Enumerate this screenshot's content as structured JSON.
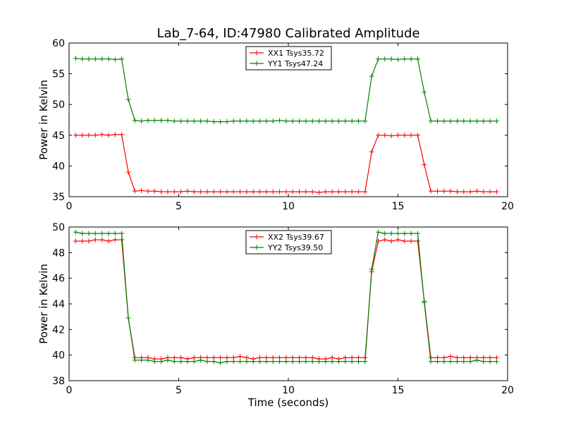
{
  "chart_data": [
    {
      "type": "line",
      "title": "Lab_7-64, ID:47980 Calibrated Amplitude",
      "xlabel": "",
      "ylabel": "Power in Kelvin",
      "xlim": [
        0,
        20
      ],
      "ylim": [
        35,
        60
      ],
      "xticks": [
        "0",
        "5",
        "10",
        "15",
        "20"
      ],
      "yticks": [
        "35",
        "40",
        "45",
        "50",
        "55",
        "60"
      ],
      "grid": false,
      "legend": "top-center",
      "x": [
        0.3,
        0.6,
        0.9,
        1.2,
        1.5,
        1.8,
        2.1,
        2.4,
        2.7,
        3.0,
        3.3,
        3.6,
        3.9,
        4.2,
        4.5,
        4.8,
        5.1,
        5.4,
        5.7,
        6.0,
        6.3,
        6.6,
        6.9,
        7.2,
        7.5,
        7.8,
        8.1,
        8.4,
        8.7,
        9.0,
        9.3,
        9.6,
        9.9,
        10.2,
        10.5,
        10.8,
        11.1,
        11.4,
        11.7,
        12.0,
        12.3,
        12.6,
        12.9,
        13.2,
        13.5,
        13.8,
        14.1,
        14.4,
        14.7,
        15.0,
        15.3,
        15.6,
        15.9,
        16.2,
        16.5,
        16.8,
        17.1,
        17.4,
        17.7,
        18.0,
        18.3,
        18.6,
        18.9,
        19.2,
        19.5
      ],
      "series": [
        {
          "name": "XX1 Tsys35.72",
          "color": "#ff0000",
          "values": [
            45.0,
            45.0,
            45.0,
            45.0,
            45.1,
            45.0,
            45.1,
            45.1,
            39.0,
            35.9,
            36.0,
            35.9,
            35.9,
            35.8,
            35.8,
            35.8,
            35.8,
            35.9,
            35.8,
            35.8,
            35.8,
            35.8,
            35.8,
            35.8,
            35.8,
            35.8,
            35.8,
            35.8,
            35.8,
            35.8,
            35.8,
            35.8,
            35.8,
            35.8,
            35.8,
            35.8,
            35.8,
            35.7,
            35.8,
            35.8,
            35.8,
            35.8,
            35.8,
            35.8,
            35.8,
            42.3,
            45.0,
            45.0,
            44.9,
            45.0,
            45.0,
            45.0,
            45.0,
            40.2,
            35.9,
            35.9,
            35.9,
            35.9,
            35.8,
            35.8,
            35.8,
            35.9,
            35.8,
            35.8,
            35.8
          ]
        },
        {
          "name": "YY1 Tsys47.24",
          "color": "#008000",
          "values": [
            57.5,
            57.4,
            57.4,
            57.4,
            57.4,
            57.4,
            57.3,
            57.4,
            50.8,
            47.4,
            47.3,
            47.4,
            47.4,
            47.4,
            47.4,
            47.3,
            47.3,
            47.3,
            47.3,
            47.3,
            47.3,
            47.2,
            47.2,
            47.2,
            47.3,
            47.3,
            47.3,
            47.3,
            47.3,
            47.3,
            47.3,
            47.4,
            47.3,
            47.3,
            47.3,
            47.3,
            47.3,
            47.3,
            47.3,
            47.3,
            47.3,
            47.3,
            47.3,
            47.3,
            47.3,
            54.6,
            57.4,
            57.4,
            57.4,
            57.3,
            57.4,
            57.4,
            57.4,
            52.0,
            47.3,
            47.3,
            47.3,
            47.3,
            47.3,
            47.3,
            47.3,
            47.3,
            47.3,
            47.3,
            47.3
          ]
        }
      ]
    },
    {
      "type": "line",
      "title": "",
      "xlabel": "Time (seconds)",
      "ylabel": "Power in Kelvin",
      "xlim": [
        0,
        20
      ],
      "ylim": [
        38,
        50
      ],
      "xticks": [
        "0",
        "5",
        "10",
        "15",
        "20"
      ],
      "yticks": [
        "38",
        "40",
        "42",
        "44",
        "46",
        "48",
        "50"
      ],
      "grid": false,
      "legend": "top-center",
      "x": [
        0.3,
        0.6,
        0.9,
        1.2,
        1.5,
        1.8,
        2.1,
        2.4,
        2.7,
        3.0,
        3.3,
        3.6,
        3.9,
        4.2,
        4.5,
        4.8,
        5.1,
        5.4,
        5.7,
        6.0,
        6.3,
        6.6,
        6.9,
        7.2,
        7.5,
        7.8,
        8.1,
        8.4,
        8.7,
        9.0,
        9.3,
        9.6,
        9.9,
        10.2,
        10.5,
        10.8,
        11.1,
        11.4,
        11.7,
        12.0,
        12.3,
        12.6,
        12.9,
        13.2,
        13.5,
        13.8,
        14.1,
        14.4,
        14.7,
        15.0,
        15.3,
        15.6,
        15.9,
        16.2,
        16.5,
        16.8,
        17.1,
        17.4,
        17.7,
        18.0,
        18.3,
        18.6,
        18.9,
        19.2,
        19.5
      ],
      "series": [
        {
          "name": "XX2 Tsys39.67",
          "color": "#ff0000",
          "values": [
            48.9,
            48.9,
            48.9,
            49.0,
            49.0,
            48.9,
            49.0,
            49.0,
            42.9,
            39.8,
            39.8,
            39.8,
            39.7,
            39.7,
            39.8,
            39.8,
            39.8,
            39.7,
            39.8,
            39.8,
            39.8,
            39.8,
            39.8,
            39.8,
            39.8,
            39.9,
            39.8,
            39.7,
            39.8,
            39.8,
            39.8,
            39.8,
            39.8,
            39.8,
            39.8,
            39.8,
            39.8,
            39.7,
            39.7,
            39.8,
            39.7,
            39.8,
            39.8,
            39.8,
            39.8,
            46.5,
            48.9,
            49.0,
            48.9,
            49.0,
            48.9,
            48.9,
            48.9,
            44.2,
            39.8,
            39.8,
            39.8,
            39.9,
            39.8,
            39.8,
            39.8,
            39.8,
            39.8,
            39.8,
            39.8
          ]
        },
        {
          "name": "YY2 Tsys39.50",
          "color": "#008000",
          "values": [
            49.6,
            49.5,
            49.5,
            49.5,
            49.5,
            49.5,
            49.5,
            49.5,
            42.9,
            39.6,
            39.6,
            39.6,
            39.5,
            39.5,
            39.6,
            39.5,
            39.5,
            39.5,
            39.5,
            39.6,
            39.5,
            39.5,
            39.4,
            39.5,
            39.5,
            39.5,
            39.5,
            39.5,
            39.5,
            39.5,
            39.5,
            39.5,
            39.5,
            39.5,
            39.5,
            39.5,
            39.5,
            39.5,
            39.5,
            39.5,
            39.5,
            39.5,
            39.5,
            39.5,
            39.5,
            46.7,
            49.6,
            49.5,
            49.5,
            49.5,
            49.5,
            49.5,
            49.5,
            44.1,
            39.5,
            39.5,
            39.5,
            39.5,
            39.5,
            39.5,
            39.5,
            39.6,
            39.5,
            39.5,
            39.5
          ]
        }
      ]
    }
  ]
}
